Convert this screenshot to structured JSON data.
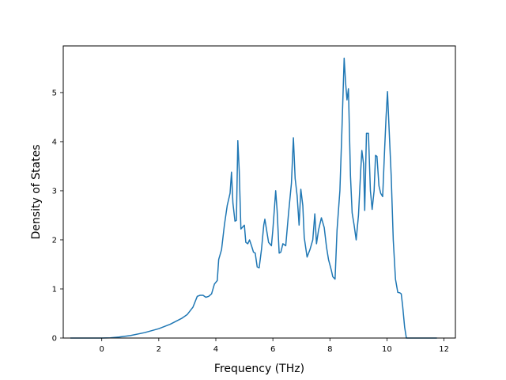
{
  "chart_data": {
    "type": "line",
    "title": "",
    "xlabel": "Frequency (THz)",
    "ylabel": "Density of States",
    "xlim": [
      -1.35,
      12.4
    ],
    "ylim": [
      0,
      5.95
    ],
    "xticks": [
      0,
      2,
      4,
      6,
      8,
      10,
      12
    ],
    "yticks": [
      0,
      1,
      2,
      3,
      4,
      5
    ],
    "grid": false,
    "legend": "none",
    "series": [
      {
        "color": "#1f77b4",
        "points": [
          [
            -1.1,
            0
          ],
          [
            -0.5,
            0
          ],
          [
            0,
            0
          ],
          [
            0.3,
            0.005
          ],
          [
            0.6,
            0.02
          ],
          [
            1.0,
            0.05
          ],
          [
            1.5,
            0.11
          ],
          [
            2.0,
            0.19
          ],
          [
            2.4,
            0.28
          ],
          [
            2.8,
            0.4
          ],
          [
            3.0,
            0.48
          ],
          [
            3.2,
            0.63
          ],
          [
            3.35,
            0.85
          ],
          [
            3.45,
            0.87
          ],
          [
            3.55,
            0.87
          ],
          [
            3.65,
            0.83
          ],
          [
            3.75,
            0.85
          ],
          [
            3.85,
            0.9
          ],
          [
            3.95,
            1.1
          ],
          [
            4.05,
            1.17
          ],
          [
            4.1,
            1.6
          ],
          [
            4.2,
            1.8
          ],
          [
            4.3,
            2.3
          ],
          [
            4.4,
            2.7
          ],
          [
            4.5,
            2.95
          ],
          [
            4.55,
            3.38
          ],
          [
            4.6,
            2.75
          ],
          [
            4.67,
            2.38
          ],
          [
            4.72,
            2.4
          ],
          [
            4.77,
            4.02
          ],
          [
            4.82,
            3.4
          ],
          [
            4.88,
            2.22
          ],
          [
            5.0,
            2.3
          ],
          [
            5.05,
            1.95
          ],
          [
            5.12,
            1.92
          ],
          [
            5.18,
            2.0
          ],
          [
            5.25,
            1.88
          ],
          [
            5.32,
            1.75
          ],
          [
            5.38,
            1.73
          ],
          [
            5.45,
            1.45
          ],
          [
            5.52,
            1.43
          ],
          [
            5.6,
            1.8
          ],
          [
            5.68,
            2.3
          ],
          [
            5.72,
            2.42
          ],
          [
            5.78,
            2.2
          ],
          [
            5.85,
            1.95
          ],
          [
            5.95,
            1.88
          ],
          [
            6.0,
            2.2
          ],
          [
            6.1,
            3.0
          ],
          [
            6.15,
            2.6
          ],
          [
            6.22,
            1.73
          ],
          [
            6.28,
            1.75
          ],
          [
            6.35,
            1.92
          ],
          [
            6.45,
            1.88
          ],
          [
            6.55,
            2.55
          ],
          [
            6.65,
            3.15
          ],
          [
            6.72,
            4.08
          ],
          [
            6.78,
            3.25
          ],
          [
            6.85,
            2.9
          ],
          [
            6.92,
            2.3
          ],
          [
            6.98,
            3.03
          ],
          [
            7.05,
            2.7
          ],
          [
            7.1,
            2.05
          ],
          [
            7.2,
            1.65
          ],
          [
            7.3,
            1.8
          ],
          [
            7.4,
            2.0
          ],
          [
            7.47,
            2.53
          ],
          [
            7.53,
            1.92
          ],
          [
            7.6,
            2.2
          ],
          [
            7.7,
            2.45
          ],
          [
            7.8,
            2.25
          ],
          [
            7.88,
            1.85
          ],
          [
            7.95,
            1.6
          ],
          [
            8.05,
            1.38
          ],
          [
            8.1,
            1.25
          ],
          [
            8.18,
            1.2
          ],
          [
            8.25,
            2.2
          ],
          [
            8.35,
            3.0
          ],
          [
            8.42,
            4.2
          ],
          [
            8.5,
            5.7
          ],
          [
            8.55,
            5.2
          ],
          [
            8.6,
            4.85
          ],
          [
            8.65,
            5.08
          ],
          [
            8.72,
            3.3
          ],
          [
            8.78,
            2.55
          ],
          [
            8.85,
            2.3
          ],
          [
            8.92,
            2.0
          ],
          [
            9.0,
            2.5
          ],
          [
            9.08,
            3.4
          ],
          [
            9.12,
            3.82
          ],
          [
            9.18,
            3.55
          ],
          [
            9.22,
            2.6
          ],
          [
            9.28,
            4.17
          ],
          [
            9.35,
            4.17
          ],
          [
            9.42,
            3.0
          ],
          [
            9.48,
            2.62
          ],
          [
            9.55,
            3.0
          ],
          [
            9.6,
            3.72
          ],
          [
            9.65,
            3.7
          ],
          [
            9.72,
            3.1
          ],
          [
            9.78,
            2.95
          ],
          [
            9.85,
            2.88
          ],
          [
            9.92,
            3.85
          ],
          [
            9.97,
            4.5
          ],
          [
            10.02,
            5.02
          ],
          [
            10.08,
            4.2
          ],
          [
            10.15,
            3.3
          ],
          [
            10.22,
            2.0
          ],
          [
            10.3,
            1.2
          ],
          [
            10.38,
            0.93
          ],
          [
            10.45,
            0.92
          ],
          [
            10.5,
            0.9
          ],
          [
            10.55,
            0.65
          ],
          [
            10.62,
            0.22
          ],
          [
            10.68,
            0.0
          ],
          [
            11.0,
            0
          ],
          [
            11.75,
            0
          ]
        ]
      }
    ]
  }
}
